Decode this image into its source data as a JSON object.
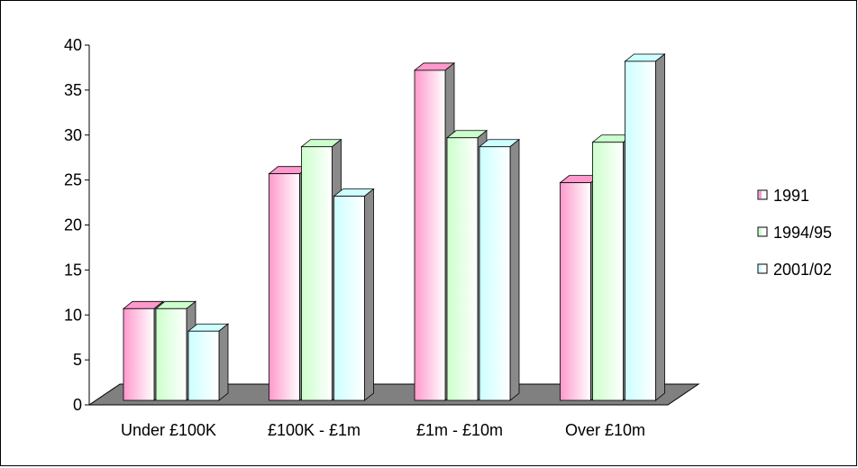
{
  "chart_data": {
    "type": "bar",
    "categories": [
      "Under £100K",
      "£100K - £1m",
      "£1m - £10m",
      "Over £10m"
    ],
    "series": [
      {
        "name": "1991",
        "values": [
          11.5,
          26.5,
          38,
          25.5
        ],
        "color": "#ff99cc"
      },
      {
        "name": "1994/95",
        "values": [
          11.5,
          29.5,
          30.5,
          30
        ],
        "color": "#ccffcc"
      },
      {
        "name": "2001/02",
        "values": [
          9,
          24,
          29.5,
          39
        ],
        "color": "#ccffff"
      }
    ],
    "y_ticks": [
      "0",
      "5",
      "10",
      "15",
      "20",
      "25",
      "30",
      "35",
      "40"
    ],
    "ylim": [
      0,
      40
    ],
    "title": "",
    "xlabel": "",
    "ylabel": "",
    "legend_position": "right",
    "grid": false,
    "style": "3d-column",
    "floor_color": "#808080"
  }
}
